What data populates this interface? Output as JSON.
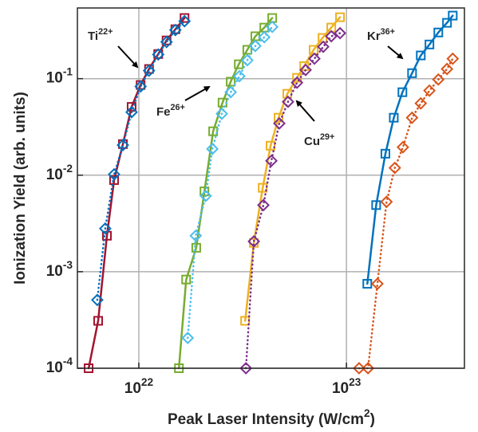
{
  "chart_data": {
    "type": "line",
    "xlabel": "Peak Laser Intensity (W/cm^{2})",
    "ylabel": "Ionization Yield (arb. units)",
    "xscale": "log",
    "yscale": "log",
    "grid": true,
    "xlim": [
      5.06e+21,
      3.7e+23
    ],
    "ylim": [
      0.0001,
      0.54
    ],
    "xticks": [
      {
        "value": 1e+22,
        "label": "10^{22}"
      },
      {
        "value": 1e+23,
        "label": "10^{23}"
      }
    ],
    "yticks": [
      {
        "value": 0.0001,
        "label": "10^{-4}"
      },
      {
        "value": 0.001,
        "label": "10^{-3}"
      },
      {
        "value": 0.01,
        "label": "10^{-2}"
      },
      {
        "value": 0.1,
        "label": "10^{-1}"
      }
    ],
    "annotations": [
      "Ti^{22+}",
      "Fe^{26+}",
      "Cu^{29+}",
      "Kr^{36+}"
    ],
    "series": [
      {
        "color": "#a2142f",
        "marker": "square",
        "linestyle": "solid",
        "x": [
          5.73e+21,
          6.37e+21,
          7.02e+21,
          7.6e+21,
          8.38e+21,
          9.23e+21,
          1.02e+22,
          1.12e+22,
          1.24e+22,
          1.36e+22,
          1.5e+22,
          1.66e+22
        ],
        "values": [
          0.0001,
          0.00031,
          0.00236,
          0.0089,
          0.021,
          0.051,
          0.086,
          0.126,
          0.18,
          0.249,
          0.325,
          0.425
        ]
      },
      {
        "color": "#0072bd",
        "marker": "diamond",
        "linestyle": "dotted",
        "x": [
          6.31e+21,
          6.89e+21,
          7.6e+21,
          8.38e+21,
          9.23e+21,
          1.02e+22,
          1.12e+22,
          1.24e+22,
          1.36e+22,
          1.5e+22,
          1.66e+22
        ],
        "values": [
          0.00051,
          0.0028,
          0.0102,
          0.0205,
          0.045,
          0.083,
          0.121,
          0.178,
          0.24,
          0.319,
          0.394
        ]
      },
      {
        "color": "#77ac30",
        "marker": "square",
        "linestyle": "solid",
        "x": [
          1.56e+22,
          1.69e+22,
          1.89e+22,
          2.07e+22,
          2.28e+22,
          2.53e+22,
          2.77e+22,
          3.03e+22,
          3.33e+22,
          3.64e+22,
          4.02e+22,
          4.39e+22
        ],
        "values": [
          0.0001,
          0.00083,
          0.00177,
          0.0068,
          0.0285,
          0.0565,
          0.093,
          0.141,
          0.199,
          0.275,
          0.338,
          0.425
        ]
      },
      {
        "color": "#4dbeee",
        "marker": "diamond",
        "linestyle": "dotted",
        "x": [
          1.72e+22,
          1.88e+22,
          2.1e+22,
          2.26e+22,
          2.51e+22,
          2.77e+22,
          3.05e+22,
          3.33e+22,
          3.64e+22,
          4.02e+22,
          4.39e+22
        ],
        "values": [
          0.000206,
          0.00236,
          0.0061,
          0.0187,
          0.0433,
          0.0724,
          0.106,
          0.155,
          0.218,
          0.269,
          0.344
        ]
      },
      {
        "color": "#edb120",
        "marker": "square",
        "linestyle": "solid",
        "x": [
          3.25e+22,
          3.58e+22,
          3.95e+22,
          4.31e+22,
          4.71e+22,
          5.19e+22,
          5.78e+22,
          6.26e+22,
          6.95e+22,
          7.67e+22,
          8.45e+22,
          9.31e+22
        ],
        "values": [
          0.00031,
          0.00199,
          0.0074,
          0.0202,
          0.0394,
          0.0697,
          0.102,
          0.135,
          0.199,
          0.264,
          0.338,
          0.433
        ]
      },
      {
        "color": "#7e2f8e",
        "marker": "diamond",
        "linestyle": "dotted",
        "x": [
          3.28e+22,
          3.58e+22,
          3.98e+22,
          4.35e+22,
          4.75e+22,
          5.23e+22,
          5.78e+22,
          6.36e+22,
          7.01e+22,
          7.73e+22,
          8.45e+22,
          9.31e+22
        ],
        "values": [
          0.0001,
          0.00206,
          0.0049,
          0.0141,
          0.0344,
          0.0576,
          0.091,
          0.123,
          0.161,
          0.214,
          0.275,
          0.296
        ]
      },
      {
        "color": "#0072bd",
        "marker": "square",
        "linestyle": "solid",
        "x": [
          1.26e+23,
          1.39e+23,
          1.54e+23,
          1.69e+23,
          1.86e+23,
          2.07e+23,
          2.28e+23,
          2.51e+23,
          2.77e+23,
          3.05e+23,
          3.25e+23
        ],
        "values": [
          0.00075,
          0.0049,
          0.0167,
          0.0394,
          0.0724,
          0.114,
          0.174,
          0.226,
          0.301,
          0.379,
          0.45
        ]
      },
      {
        "color": "#d95319",
        "marker": "diamond",
        "linestyle": "dotted",
        "x": [
          1.15e+23,
          1.27e+23,
          1.41e+23,
          1.56e+23,
          1.71e+23,
          1.87e+23,
          2.07e+23,
          2.28e+23,
          2.51e+23,
          2.77e+23,
          3.05e+23,
          3.25e+23
        ],
        "values": [
          0.0001,
          0.0001,
          0.00075,
          0.0053,
          0.0119,
          0.0195,
          0.0394,
          0.0555,
          0.0752,
          0.098,
          0.126,
          0.161
        ]
      }
    ]
  }
}
